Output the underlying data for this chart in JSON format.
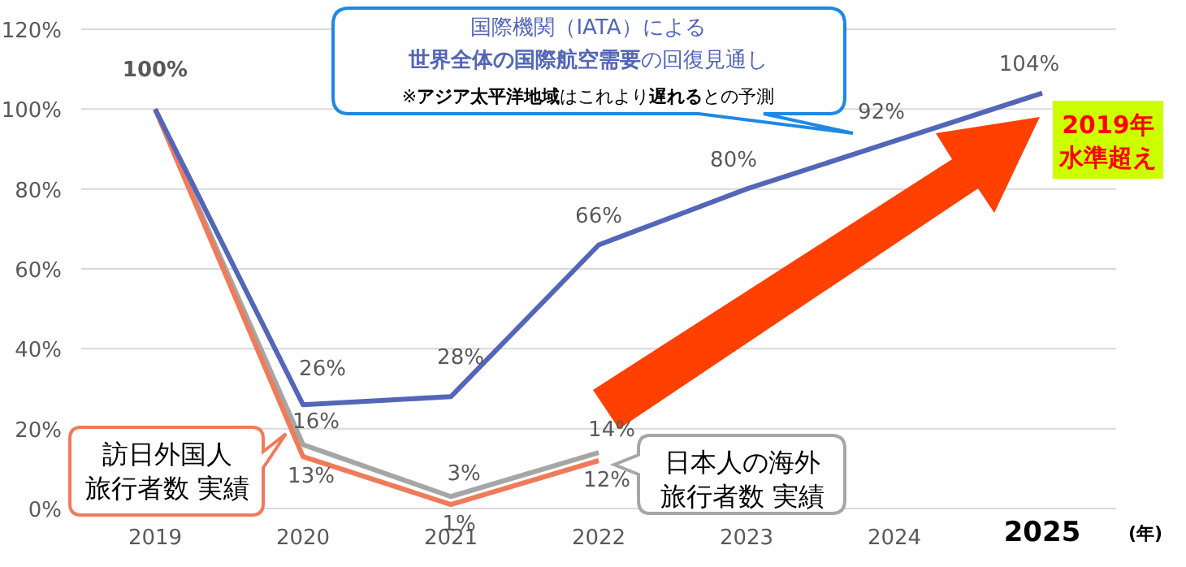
{
  "chart_data": {
    "type": "line",
    "categories": [
      "2019",
      "2020",
      "2021",
      "2022",
      "2023",
      "2024",
      "2025"
    ],
    "xlabel": "(年)",
    "ylim": [
      0,
      120
    ],
    "yticks": [
      {
        "value": 0,
        "label": "0%"
      },
      {
        "value": 20,
        "label": "20%"
      },
      {
        "value": 40,
        "label": "40%"
      },
      {
        "value": 60,
        "label": "60%"
      },
      {
        "value": 80,
        "label": "80%"
      },
      {
        "value": 100,
        "label": "100%"
      },
      {
        "value": 120,
        "label": "120%"
      }
    ],
    "grid": "y",
    "legend": false,
    "marker": "none",
    "line_style": "solid",
    "series": [
      {
        "name": "国際機関（IATA）による**世界全体の国際航空需要**の回復見通し",
        "color": "#5366b8",
        "values": [
          100,
          26,
          28,
          66,
          80,
          92,
          104
        ],
        "value_labels": [
          "**100%**",
          "26%",
          "28%",
          "66%",
          "80%",
          "92%",
          "104%"
        ]
      },
      {
        "name": "訪日外国人旅行者数 実績",
        "color": "#f07a5a",
        "values": [
          100,
          13,
          1,
          12,
          null,
          null,
          null
        ],
        "value_labels": [
          null,
          "13%",
          "1%",
          "12%",
          null,
          null,
          null
        ]
      },
      {
        "name": "日本人の海外旅行者数 実績",
        "color": "#a6a6a6",
        "values": [
          100,
          16,
          3,
          14,
          null,
          null,
          null
        ],
        "value_labels": [
          null,
          "16%",
          "3%",
          "14%",
          null,
          null,
          null
        ]
      }
    ],
    "annotations": [
      "※**アジア太平洋地域**はこれより**遅れる**との予測",
      "2019年水準超え"
    ]
  }
}
